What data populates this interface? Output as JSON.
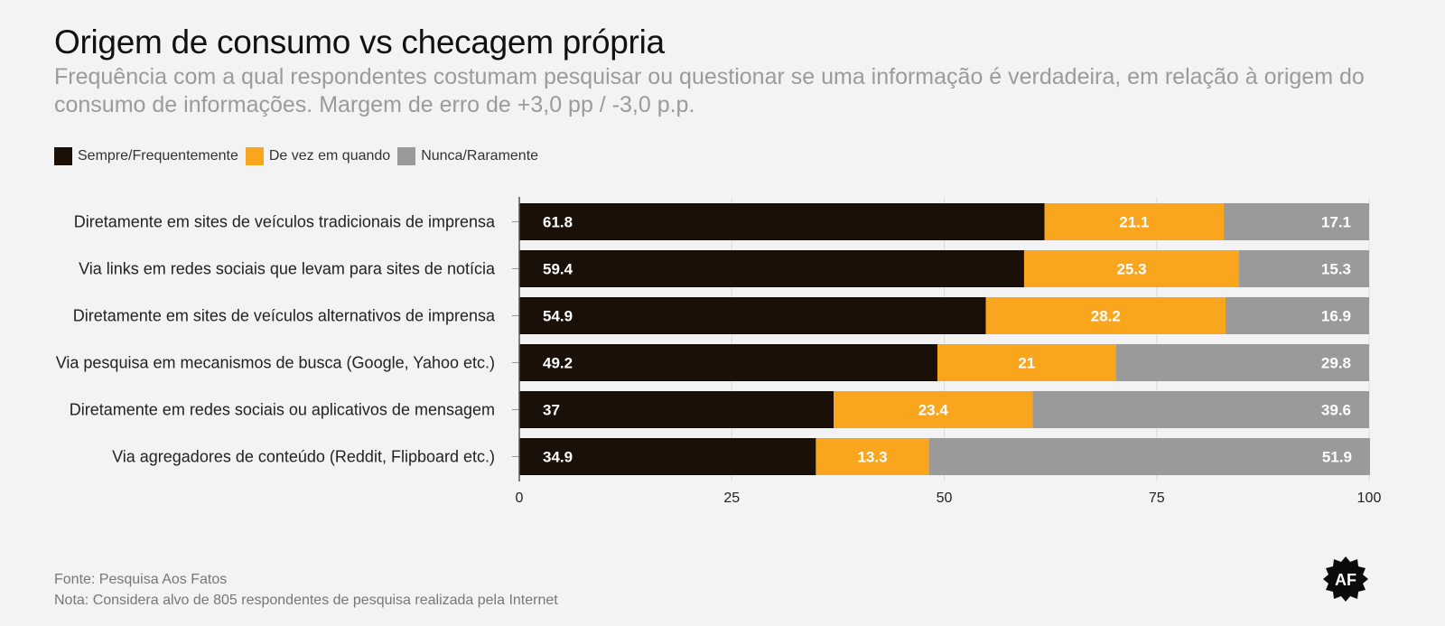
{
  "title": "Origem de consumo vs checagem própria",
  "subtitle": "Frequência com a qual respondentes costumam pesquisar ou questionar se uma informação é verdadeira, em relação à origem do consumo de informações. Margem de erro de +3,0 pp / -3,0 p.p.",
  "footer": {
    "source": "Fonte: Pesquisa Aos Fatos",
    "note": "Nota: Considera alvo de 805 respondentes de pesquisa realizada pela Internet"
  },
  "logo": {
    "text": "AF"
  },
  "chart_data": {
    "type": "bar",
    "orientation": "horizontal",
    "stacked": true,
    "title": "Origem de consumo vs checagem própria",
    "categories": [
      "Diretamente em sites de veículos tradicionais de imprensa",
      "Via links em redes sociais que levam para sites de notícia",
      "Diretamente em sites de veículos alternativos de imprensa",
      "Via pesquisa em mecanismos de busca (Google, Yahoo etc.)",
      "Diretamente em redes sociais ou aplicativos de mensagem",
      "Via agregadores de conteúdo (Reddit, Flipboard etc.)"
    ],
    "series": [
      {
        "name": "Sempre/Frequentemente",
        "color": "#1a1008",
        "values": [
          61.8,
          59.4,
          54.9,
          49.2,
          37,
          34.9
        ]
      },
      {
        "name": "De vez em quando",
        "color": "#f9a61e",
        "values": [
          21.1,
          25.3,
          28.2,
          21,
          23.4,
          13.3
        ]
      },
      {
        "name": "Nunca/Raramente",
        "color": "#9a9a9a",
        "values": [
          17.1,
          15.3,
          16.9,
          29.8,
          39.6,
          51.9
        ]
      }
    ],
    "xlim": [
      0,
      100
    ],
    "xticks": [
      0,
      25,
      50,
      75,
      100
    ],
    "legend_position": "top-left",
    "grid": true
  }
}
